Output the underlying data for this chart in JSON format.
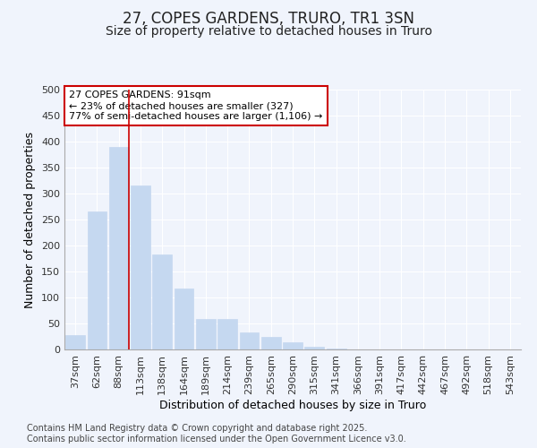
{
  "title1": "27, COPES GARDENS, TRURO, TR1 3SN",
  "title2": "Size of property relative to detached houses in Truro",
  "xlabel": "Distribution of detached houses by size in Truro",
  "ylabel": "Number of detached properties",
  "categories": [
    "37sqm",
    "62sqm",
    "88sqm",
    "113sqm",
    "138sqm",
    "164sqm",
    "189sqm",
    "214sqm",
    "239sqm",
    "265sqm",
    "290sqm",
    "315sqm",
    "341sqm",
    "366sqm",
    "391sqm",
    "417sqm",
    "442sqm",
    "467sqm",
    "492sqm",
    "518sqm",
    "543sqm"
  ],
  "values": [
    27,
    265,
    390,
    315,
    183,
    118,
    58,
    58,
    32,
    24,
    13,
    5,
    1,
    0,
    0,
    0,
    0,
    0,
    0,
    0,
    0
  ],
  "bar_color": "#c5d8f0",
  "bar_edge_color": "#c5d8f0",
  "vline_color": "#cc0000",
  "annotation_text": "27 COPES GARDENS: 91sqm\n← 23% of detached houses are smaller (327)\n77% of semi-detached houses are larger (1,106) →",
  "annotation_box_facecolor": "white",
  "annotation_box_edgecolor": "#cc0000",
  "ylim": [
    0,
    500
  ],
  "yticks": [
    0,
    50,
    100,
    150,
    200,
    250,
    300,
    350,
    400,
    450,
    500
  ],
  "bg_color": "#f0f4fc",
  "plot_bg_color": "#f0f4fc",
  "grid_color": "white",
  "footer_text": "Contains HM Land Registry data © Crown copyright and database right 2025.\nContains public sector information licensed under the Open Government Licence v3.0.",
  "title_fontsize": 12,
  "subtitle_fontsize": 10,
  "axis_label_fontsize": 9,
  "tick_fontsize": 8,
  "footer_fontsize": 7
}
